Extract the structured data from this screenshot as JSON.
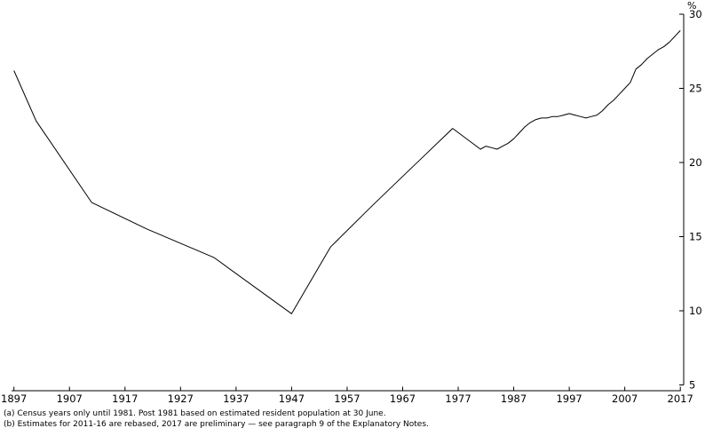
{
  "chart_data": {
    "type": "line",
    "ylabel": "%",
    "xlim": [
      1897,
      2017
    ],
    "ylim": [
      5,
      30
    ],
    "x_ticks": [
      1897,
      1907,
      1917,
      1927,
      1937,
      1947,
      1957,
      1967,
      1977,
      1987,
      1997,
      2007,
      2017
    ],
    "y_ticks": [
      5,
      10,
      15,
      20,
      25,
      30
    ],
    "grid": false,
    "legend": "none",
    "series": [
      {
        "points": [
          [
            1897,
            26.2
          ],
          [
            1901,
            22.8
          ],
          [
            1911,
            17.3
          ],
          [
            1921,
            15.5
          ],
          [
            1933,
            13.6
          ],
          [
            1947,
            9.8
          ],
          [
            1954,
            14.3
          ],
          [
            1961,
            16.9
          ],
          [
            1966,
            18.7
          ],
          [
            1971,
            20.5
          ],
          [
            1976,
            22.3
          ],
          [
            1981,
            20.9
          ],
          [
            1982,
            21.1
          ],
          [
            1983,
            21.0
          ],
          [
            1984,
            20.9
          ],
          [
            1985,
            21.1
          ],
          [
            1986,
            21.3
          ],
          [
            1987,
            21.6
          ],
          [
            1988,
            22.0
          ],
          [
            1989,
            22.4
          ],
          [
            1990,
            22.7
          ],
          [
            1991,
            22.9
          ],
          [
            1992,
            23.0
          ],
          [
            1993,
            23.0
          ],
          [
            1994,
            23.1
          ],
          [
            1995,
            23.1
          ],
          [
            1996,
            23.2
          ],
          [
            1997,
            23.3
          ],
          [
            1998,
            23.2
          ],
          [
            1999,
            23.1
          ],
          [
            2000,
            23.0
          ],
          [
            2001,
            23.1
          ],
          [
            2002,
            23.2
          ],
          [
            2003,
            23.5
          ],
          [
            2004,
            23.9
          ],
          [
            2005,
            24.2
          ],
          [
            2006,
            24.6
          ],
          [
            2007,
            25.0
          ],
          [
            2008,
            25.4
          ],
          [
            2009,
            26.3
          ],
          [
            2010,
            26.6
          ],
          [
            2011,
            27.0
          ],
          [
            2012,
            27.3
          ],
          [
            2013,
            27.6
          ],
          [
            2014,
            27.8
          ],
          [
            2015,
            28.1
          ],
          [
            2016,
            28.5
          ],
          [
            2017,
            28.9
          ]
        ]
      }
    ]
  },
  "footnotes": [
    "(a) Census years only until 1981. Post 1981 based on estimated resident population at 30 June.",
    "(b) Estimates for 2011-16 are rebased, 2017 are preliminary — see paragraph 9 of the Explanatory Notes."
  ],
  "colors": {
    "line": "#000000",
    "axis": "#000000",
    "text": "#000000",
    "background": "#ffffff"
  }
}
